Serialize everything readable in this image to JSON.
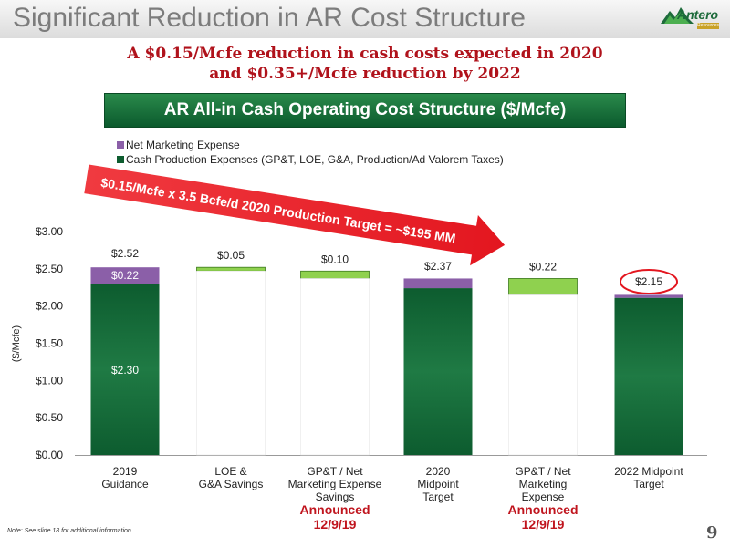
{
  "header": {
    "title": "Significant Reduction in AR Cost Structure",
    "logo_text": "Antero",
    "logo_subtext": "Resources"
  },
  "subtitle": {
    "line1": "A $0.15/Mcfe reduction in cash costs expected in 2020",
    "line2": "and $0.35+/Mcfe reduction by 2022"
  },
  "banner": "AR All-in Cash Operating Cost Structure ($/Mcfe)",
  "arrow_text": "$0.15/Mcfe x 3.5 Bcfe/d 2020 Production Target = ~$195 MM",
  "footer": {
    "note": "Note:  See slide 18 for additional information.",
    "page": "9"
  },
  "colors": {
    "cash_production": "#0d5c2f",
    "net_marketing": "#8b5fa8",
    "reduction": "#8fd14f",
    "arrow": "#e3161f",
    "accent_text": "#c0151e"
  },
  "chart_data": {
    "type": "bar",
    "subtype": "waterfall",
    "ylabel": "($/Mcfe)",
    "ylim": [
      0,
      3.0
    ],
    "yticks": [
      "$0.00",
      "$0.50",
      "$1.00",
      "$1.50",
      "$2.00",
      "$2.50",
      "$3.00"
    ],
    "ytick_values": [
      0,
      0.5,
      1.0,
      1.5,
      2.0,
      2.5,
      3.0
    ],
    "grid": false,
    "legend_position": "top-left",
    "legend": [
      {
        "name": "Net Marketing Expense",
        "color_key": "net_marketing"
      },
      {
        "name": "Cash Production Expenses (GP&T, LOE, G&A, Production/Ad Valorem Taxes)",
        "color_key": "cash_production"
      }
    ],
    "categories": [
      {
        "label": [
          "2019",
          "Guidance"
        ],
        "annotation": []
      },
      {
        "label": [
          "LOE &",
          "G&A Savings"
        ],
        "annotation": []
      },
      {
        "label": [
          "GP&T / Net",
          "Marketing Expense",
          "Savings"
        ],
        "annotation": [
          "Announced",
          "12/9/19"
        ]
      },
      {
        "label": [
          "2020",
          "Midpoint",
          "Target"
        ],
        "annotation": []
      },
      {
        "label": [
          "GP&T / Net",
          "Marketing",
          "Expense"
        ],
        "annotation": [
          "Announced",
          "12/9/19"
        ]
      },
      {
        "label": [
          "2022 Midpoint",
          "Target"
        ],
        "annotation": []
      }
    ],
    "bars": [
      {
        "kind": "total",
        "cash_production": 2.3,
        "net_marketing": 0.22,
        "total_label": "$2.52",
        "cash_label": "$2.30",
        "marketing_label": "$0.22"
      },
      {
        "kind": "reduction",
        "top": 2.52,
        "bottom": 2.47,
        "value": 0.05,
        "label": "$0.05"
      },
      {
        "kind": "reduction",
        "top": 2.47,
        "bottom": 2.37,
        "value": 0.1,
        "label": "$0.10"
      },
      {
        "kind": "total",
        "cash_production": 2.24,
        "net_marketing": 0.13,
        "total_label": "$2.37"
      },
      {
        "kind": "reduction",
        "top": 2.37,
        "bottom": 2.15,
        "value": 0.22,
        "label": "$0.22"
      },
      {
        "kind": "total",
        "cash_production": 2.11,
        "net_marketing": 0.04,
        "total_label": "$2.15",
        "highlight": true
      }
    ]
  }
}
